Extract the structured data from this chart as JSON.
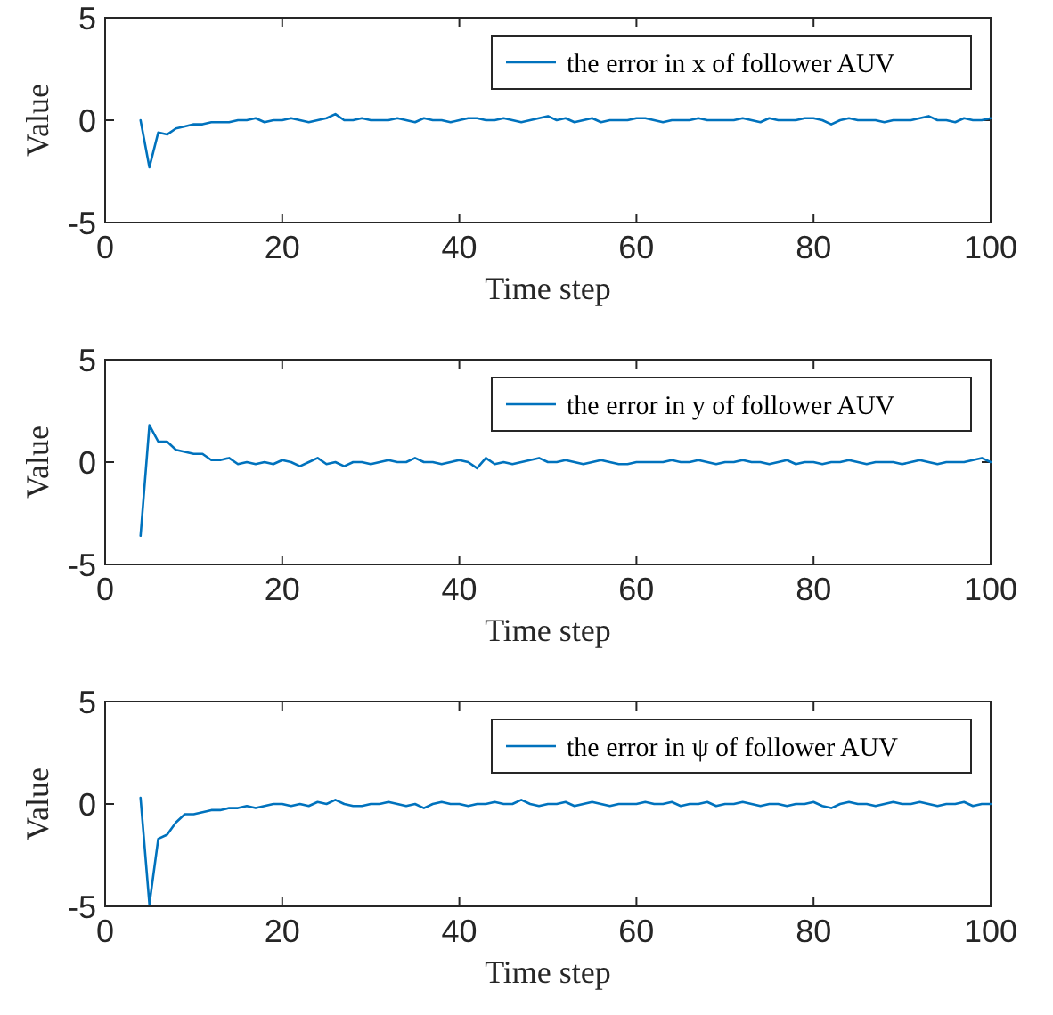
{
  "chart_data": [
    {
      "type": "line",
      "xlabel": "Time step",
      "ylabel": "Value",
      "xlim": [
        0,
        100
      ],
      "xticks": [
        0,
        20,
        40,
        60,
        80,
        100
      ],
      "ylim": [
        -5,
        5
      ],
      "yticks": [
        -5,
        0,
        5
      ],
      "legend": "top right",
      "x": [
        4,
        5,
        6,
        7,
        8,
        9,
        10,
        11,
        12,
        13,
        14,
        15,
        16,
        17,
        18,
        19,
        20,
        21,
        22,
        23,
        24,
        25,
        26,
        27,
        28,
        29,
        30,
        31,
        32,
        33,
        34,
        35,
        36,
        37,
        38,
        39,
        40,
        41,
        42,
        43,
        44,
        45,
        46,
        47,
        48,
        49,
        50,
        51,
        52,
        53,
        54,
        55,
        56,
        57,
        58,
        59,
        60,
        61,
        62,
        63,
        64,
        65,
        66,
        67,
        68,
        69,
        70,
        71,
        72,
        73,
        74,
        75,
        76,
        77,
        78,
        79,
        80,
        81,
        82,
        83,
        84,
        85,
        86,
        87,
        88,
        89,
        90,
        91,
        92,
        93,
        94,
        95,
        96,
        97,
        98,
        99,
        100
      ],
      "series": [
        {
          "name": "the error in x of follower AUV",
          "color": "#0072bd",
          "values": [
            0,
            -2.3,
            -0.6,
            -0.7,
            -0.4,
            -0.3,
            -0.2,
            -0.2,
            -0.1,
            -0.1,
            -0.1,
            0,
            0,
            0.1,
            -0.1,
            0,
            0,
            0.1,
            0,
            -0.1,
            0,
            0.1,
            0.3,
            0,
            0,
            0.1,
            0,
            0,
            0,
            0.1,
            0,
            -0.1,
            0.1,
            0,
            0,
            -0.1,
            0,
            0.1,
            0.1,
            0,
            0,
            0.1,
            0,
            -0.1,
            0,
            0.1,
            0.2,
            0,
            0.1,
            -0.1,
            0,
            0.1,
            -0.1,
            0,
            0,
            0,
            0.1,
            0.1,
            0,
            -0.1,
            0,
            0,
            0,
            0.1,
            0,
            0,
            0,
            0,
            0.1,
            0,
            -0.1,
            0.1,
            0,
            0,
            0,
            0.1,
            0.1,
            0,
            -0.2,
            0,
            0.1,
            0,
            0,
            0,
            -0.1,
            0,
            0,
            0,
            0.1,
            0.2,
            0,
            0,
            -0.1,
            0.1,
            0,
            0,
            0.1
          ]
        }
      ]
    },
    {
      "type": "line",
      "xlabel": "Time step",
      "ylabel": "Value",
      "xlim": [
        0,
        100
      ],
      "xticks": [
        0,
        20,
        40,
        60,
        80,
        100
      ],
      "ylim": [
        -5,
        5
      ],
      "yticks": [
        -5,
        0,
        5
      ],
      "legend": "top right",
      "x": [
        4,
        5,
        6,
        7,
        8,
        9,
        10,
        11,
        12,
        13,
        14,
        15,
        16,
        17,
        18,
        19,
        20,
        21,
        22,
        23,
        24,
        25,
        26,
        27,
        28,
        29,
        30,
        31,
        32,
        33,
        34,
        35,
        36,
        37,
        38,
        39,
        40,
        41,
        42,
        43,
        44,
        45,
        46,
        47,
        48,
        49,
        50,
        51,
        52,
        53,
        54,
        55,
        56,
        57,
        58,
        59,
        60,
        61,
        62,
        63,
        64,
        65,
        66,
        67,
        68,
        69,
        70,
        71,
        72,
        73,
        74,
        75,
        76,
        77,
        78,
        79,
        80,
        81,
        82,
        83,
        84,
        85,
        86,
        87,
        88,
        89,
        90,
        91,
        92,
        93,
        94,
        95,
        96,
        97,
        98,
        99,
        100
      ],
      "series": [
        {
          "name": "the error in y of follower AUV",
          "color": "#0072bd",
          "values": [
            -3.6,
            1.8,
            1.0,
            1.0,
            0.6,
            0.5,
            0.4,
            0.4,
            0.1,
            0.1,
            0.2,
            -0.1,
            0,
            -0.1,
            0,
            -0.1,
            0.1,
            0,
            -0.2,
            0,
            0.2,
            -0.1,
            0,
            -0.2,
            0,
            0,
            -0.1,
            0,
            0.1,
            0,
            0,
            0.2,
            0,
            0,
            -0.1,
            0,
            0.1,
            0,
            -0.3,
            0.2,
            -0.1,
            0,
            -0.1,
            0,
            0.1,
            0.2,
            0,
            0,
            0.1,
            0,
            -0.1,
            0,
            0.1,
            0,
            -0.1,
            -0.1,
            0,
            0,
            0,
            0,
            0.1,
            0,
            0,
            0.1,
            0,
            -0.1,
            0,
            0,
            0.1,
            0,
            0,
            -0.1,
            0,
            0.1,
            -0.1,
            0,
            0,
            -0.1,
            0,
            0,
            0.1,
            0,
            -0.1,
            0,
            0,
            0,
            -0.1,
            0,
            0.1,
            0,
            -0.1,
            0,
            0,
            0,
            0.1,
            0.2,
            0
          ]
        }
      ]
    },
    {
      "type": "line",
      "xlabel": "Time step",
      "ylabel": "Value",
      "xlim": [
        0,
        100
      ],
      "xticks": [
        0,
        20,
        40,
        60,
        80,
        100
      ],
      "ylim": [
        -5,
        5
      ],
      "yticks": [
        -5,
        0,
        5
      ],
      "legend": "top right",
      "x": [
        4,
        5,
        6,
        7,
        8,
        9,
        10,
        11,
        12,
        13,
        14,
        15,
        16,
        17,
        18,
        19,
        20,
        21,
        22,
        23,
        24,
        25,
        26,
        27,
        28,
        29,
        30,
        31,
        32,
        33,
        34,
        35,
        36,
        37,
        38,
        39,
        40,
        41,
        42,
        43,
        44,
        45,
        46,
        47,
        48,
        49,
        50,
        51,
        52,
        53,
        54,
        55,
        56,
        57,
        58,
        59,
        60,
        61,
        62,
        63,
        64,
        65,
        66,
        67,
        68,
        69,
        70,
        71,
        72,
        73,
        74,
        75,
        76,
        77,
        78,
        79,
        80,
        81,
        82,
        83,
        84,
        85,
        86,
        87,
        88,
        89,
        90,
        91,
        92,
        93,
        94,
        95,
        96,
        97,
        98,
        99,
        100
      ],
      "series": [
        {
          "name": "the error in ψ of follower AUV",
          "color": "#0072bd",
          "values": [
            0.3,
            -4.9,
            -1.7,
            -1.5,
            -0.9,
            -0.5,
            -0.5,
            -0.4,
            -0.3,
            -0.3,
            -0.2,
            -0.2,
            -0.1,
            -0.2,
            -0.1,
            0,
            0,
            -0.1,
            0,
            -0.1,
            0.1,
            0,
            0.2,
            0,
            -0.1,
            -0.1,
            0,
            0,
            0.1,
            0,
            -0.1,
            0,
            -0.2,
            0,
            0.1,
            0,
            0,
            -0.1,
            0,
            0,
            0.1,
            0,
            0,
            0.2,
            0,
            -0.1,
            0,
            0,
            0.1,
            -0.1,
            0,
            0.1,
            0,
            -0.1,
            0,
            0,
            0,
            0.1,
            0,
            0,
            0.1,
            -0.1,
            0,
            0,
            0.1,
            -0.1,
            0,
            0,
            0.1,
            0,
            -0.1,
            0,
            0,
            -0.1,
            0,
            0,
            0.1,
            -0.1,
            -0.2,
            0,
            0.1,
            0,
            0,
            -0.1,
            0,
            0.1,
            0,
            0,
            0.1,
            0,
            -0.1,
            0,
            0,
            0.1,
            -0.1,
            0,
            0
          ]
        }
      ]
    }
  ]
}
